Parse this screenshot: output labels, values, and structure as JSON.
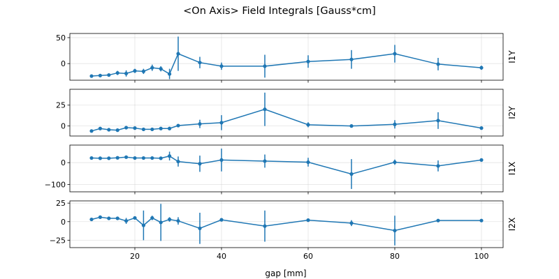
{
  "figure": {
    "title": "<On Axis> Field Integrals [Gauss*cm]",
    "xlabel": "gap [mm]"
  },
  "chart_data": [
    {
      "type": "line",
      "name": "I1Y",
      "xlim": [
        5,
        105
      ],
      "ylim": [
        -32,
        58
      ],
      "xticks": [
        20,
        40,
        60,
        80,
        100
      ],
      "yticks": [
        0,
        50
      ],
      "grid": true,
      "color": "#1f77b4",
      "x": [
        10,
        12,
        14,
        16,
        18,
        20,
        22,
        24,
        26,
        28,
        30,
        35,
        40,
        50,
        60,
        70,
        80,
        90,
        100
      ],
      "y": [
        -24,
        -23,
        -22,
        -18,
        -19,
        -14,
        -15,
        -8,
        -10,
        -20,
        19,
        2,
        -5,
        -5,
        4,
        8,
        19,
        -1,
        -8
      ],
      "yerr": [
        2,
        2,
        3,
        4,
        6,
        4,
        5,
        6,
        5,
        10,
        33,
        11,
        7,
        22,
        12,
        18,
        17,
        12,
        4
      ]
    },
    {
      "type": "line",
      "name": "I2Y",
      "xlim": [
        5,
        105
      ],
      "ylim": [
        -12,
        44
      ],
      "xticks": [
        20,
        40,
        60,
        80,
        100
      ],
      "yticks": [
        0,
        25
      ],
      "grid": true,
      "color": "#1f77b4",
      "x": [
        10,
        12,
        14,
        16,
        18,
        20,
        22,
        24,
        26,
        28,
        30,
        35,
        40,
        50,
        60,
        70,
        80,
        90,
        100
      ],
      "y": [
        -6,
        -3,
        -4.5,
        -5,
        -2,
        -2.5,
        -4,
        -4,
        -3,
        -3,
        0.5,
        2.5,
        4,
        20,
        1.5,
        0,
        2,
        6.5,
        -2.5
      ],
      "yerr": [
        1,
        1,
        1,
        2,
        1,
        1,
        1,
        1,
        1.5,
        2,
        1.5,
        5,
        9,
        20,
        3,
        1,
        5,
        10,
        1
      ]
    },
    {
      "type": "line",
      "name": "I1X",
      "xlim": [
        5,
        105
      ],
      "ylim": [
        -133,
        80
      ],
      "xticks": [
        20,
        40,
        60,
        80,
        100
      ],
      "yticks": [
        -100,
        0
      ],
      "grid": true,
      "color": "#1f77b4",
      "x": [
        10,
        12,
        14,
        16,
        18,
        20,
        22,
        24,
        26,
        28,
        30,
        35,
        40,
        50,
        60,
        70,
        80,
        90,
        100
      ],
      "y": [
        21,
        20,
        20,
        22,
        25,
        21,
        21,
        21,
        20,
        30,
        5,
        -5,
        12,
        7,
        2,
        -52,
        2,
        -15,
        12
      ],
      "yerr": [
        4,
        4,
        5,
        5,
        5,
        4,
        4,
        4,
        5,
        20,
        23,
        37,
        52,
        30,
        20,
        68,
        12,
        25,
        5
      ]
    },
    {
      "type": "line",
      "name": "I2X",
      "xlim": [
        5,
        105
      ],
      "ylim": [
        -35,
        28
      ],
      "xticks": [
        20,
        40,
        60,
        80,
        100
      ],
      "yticks": [
        -25,
        0,
        25
      ],
      "grid": true,
      "color": "#1f77b4",
      "x": [
        10,
        12,
        14,
        16,
        18,
        20,
        22,
        24,
        26,
        28,
        30,
        35,
        40,
        50,
        60,
        70,
        80,
        90,
        100
      ],
      "y": [
        3,
        6,
        4.5,
        4.5,
        1,
        5,
        -5,
        5,
        -1,
        3,
        1,
        -9,
        2.5,
        -6,
        2,
        -2,
        -12,
        1.5,
        1.5
      ],
      "yerr": [
        1,
        1,
        1,
        1.5,
        4,
        1.5,
        20,
        3,
        25,
        3,
        5,
        21,
        1.5,
        21,
        1.5,
        4,
        20,
        1.5,
        1
      ]
    }
  ]
}
